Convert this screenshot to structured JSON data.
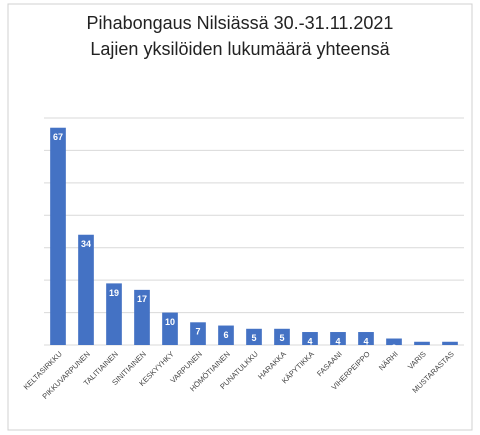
{
  "chart_data": {
    "type": "bar",
    "title": "Pihabongaus Nilsiässä 30.-31.11.2021",
    "subtitle": "Lajien yksilöiden lukumäärä yhteensä",
    "categories": [
      "KELTASIRKKU",
      "PIKKUVARPUNEN",
      "TALITIAINEN",
      "SINITIAINEN",
      "KESKYYHKY",
      "VARPUNEN",
      "HÖMÖTIAINEN",
      "PUNATULKKU",
      "HARAKKA",
      "KÄPYTIKKA",
      "FASAANI",
      "VIHERPEIPPO",
      "NÄRHI",
      "VARIS",
      "MUSTARASTAS"
    ],
    "values": [
      67,
      34,
      19,
      17,
      10,
      7,
      6,
      5,
      5,
      4,
      4,
      4,
      2,
      1,
      1
    ],
    "color": "#4472c4",
    "ylim": [
      0,
      70
    ],
    "yticks": [
      0,
      10,
      20,
      30,
      40,
      50,
      60,
      70
    ],
    "grid": true
  }
}
